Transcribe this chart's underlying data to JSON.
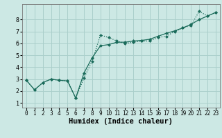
{
  "xlabel": "Humidex (Indice chaleur)",
  "x_ticks": [
    0,
    1,
    2,
    3,
    4,
    5,
    6,
    7,
    8,
    9,
    10,
    11,
    12,
    13,
    14,
    15,
    16,
    17,
    18,
    19,
    20,
    21,
    22,
    23
  ],
  "y_ticks": [
    1,
    2,
    3,
    4,
    5,
    6,
    7,
    8
  ],
  "xlim": [
    -0.5,
    23.5
  ],
  "ylim": [
    0.6,
    9.3
  ],
  "line1_x": [
    0,
    1,
    2,
    3,
    4,
    5,
    6,
    7,
    8,
    9,
    10,
    11,
    12,
    13,
    14,
    15,
    16,
    17,
    18,
    19,
    20,
    21,
    22,
    23
  ],
  "line1_y": [
    2.9,
    2.1,
    2.7,
    3.0,
    2.9,
    2.85,
    1.4,
    3.1,
    4.5,
    6.7,
    6.5,
    6.2,
    6.0,
    6.1,
    6.2,
    6.2,
    6.5,
    6.6,
    7.0,
    7.3,
    7.5,
    8.7,
    8.3,
    8.6
  ],
  "line2_x": [
    0,
    1,
    2,
    3,
    4,
    5,
    6,
    7,
    8,
    9,
    10,
    11,
    12,
    13,
    14,
    15,
    16,
    17,
    18,
    19,
    20,
    21,
    22,
    23
  ],
  "line2_y": [
    2.9,
    2.1,
    2.7,
    3.0,
    2.9,
    2.85,
    1.4,
    3.5,
    4.8,
    5.8,
    5.9,
    6.1,
    6.1,
    6.2,
    6.25,
    6.35,
    6.6,
    6.85,
    7.05,
    7.3,
    7.6,
    8.0,
    8.3,
    8.6
  ],
  "line_color": "#1a6b5a",
  "bg_color": "#cce8e4",
  "grid_color": "#aacfcb",
  "tick_label_fontsize": 5.5,
  "xlabel_fontsize": 7.5,
  "marker": "D",
  "marker_size": 2.0,
  "linewidth": 0.9
}
